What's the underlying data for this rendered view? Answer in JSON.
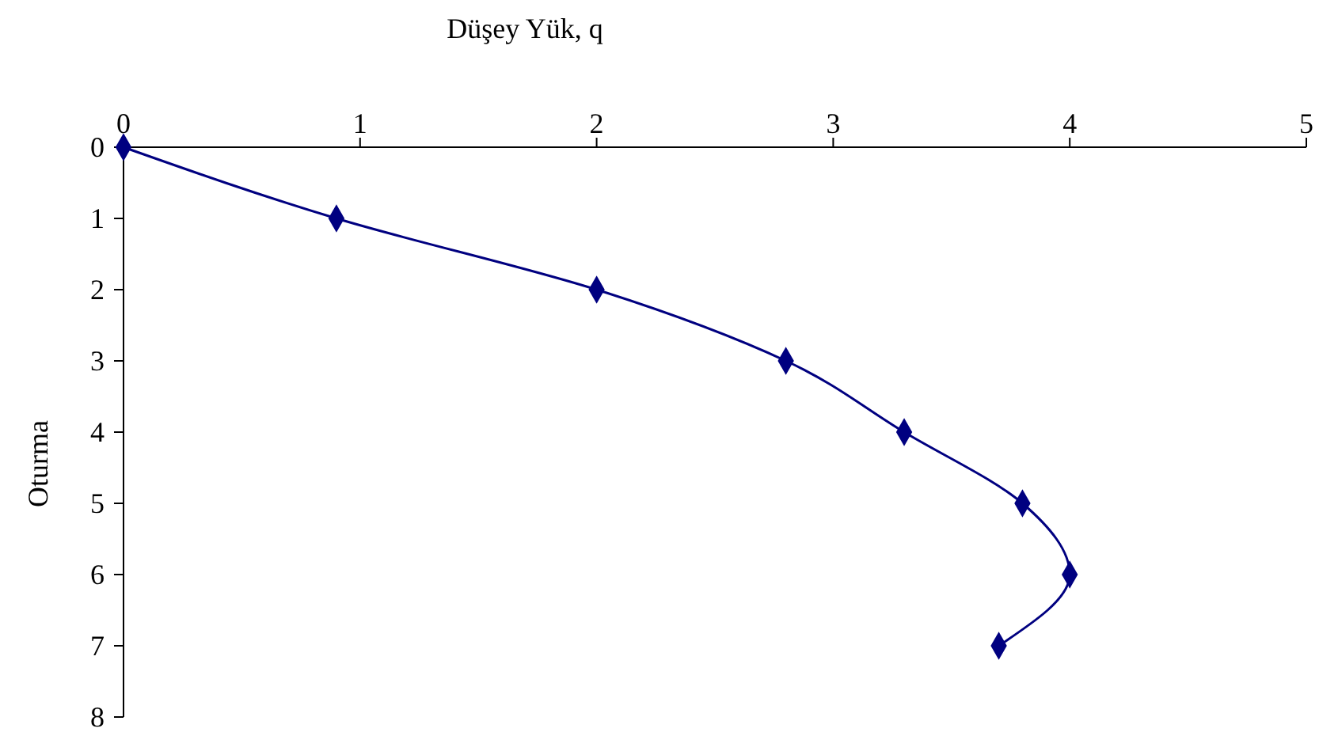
{
  "chart_data": {
    "type": "line",
    "xlabel": "Düşey Yük, q",
    "ylabel": "Oturma",
    "x": [
      0,
      0.9,
      2,
      2.8,
      3.3,
      3.8,
      4,
      3.7
    ],
    "series": [
      {
        "color": "#000080",
        "values": [
          0,
          1,
          2,
          3,
          4,
          5,
          6,
          7
        ]
      }
    ],
    "xlim": [
      0,
      5
    ],
    "xticks": [
      0,
      1,
      2,
      3,
      4,
      5
    ],
    "ylim": [
      8,
      0
    ],
    "yticks": [
      0,
      1,
      2,
      3,
      4,
      5,
      6,
      7,
      8
    ],
    "marker": "diamond",
    "line_style": "solid",
    "grid": false
  }
}
